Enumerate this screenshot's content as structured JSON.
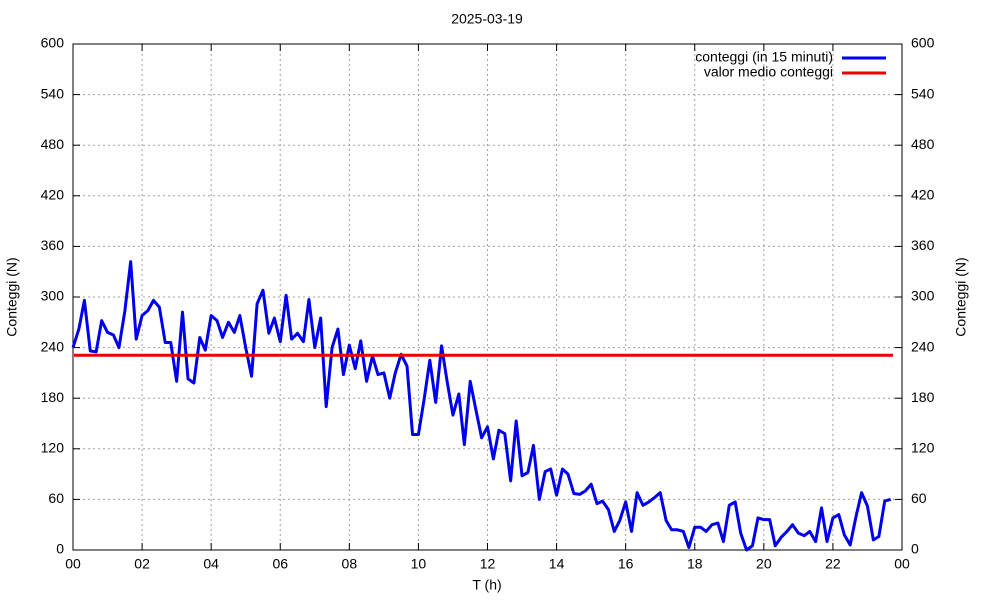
{
  "chart_data": {
    "type": "line",
    "title": "2025-03-19",
    "xlabel": "T (h)",
    "ylabel": "Conteggi (N)",
    "y2label": "Conteggi (N)",
    "xlim": [
      0,
      24
    ],
    "xticks": [
      {
        "value": 0,
        "label": "00"
      },
      {
        "value": 2,
        "label": "02"
      },
      {
        "value": 4,
        "label": "04"
      },
      {
        "value": 6,
        "label": "06"
      },
      {
        "value": 8,
        "label": "08"
      },
      10,
      12,
      14,
      16,
      18,
      20,
      22,
      {
        "value": 24,
        "label": "00"
      }
    ],
    "ylim": [
      0,
      600
    ],
    "yticks": [
      0,
      60,
      120,
      180,
      240,
      300,
      360,
      420,
      480,
      540,
      600
    ],
    "y2lim": [
      0,
      600
    ],
    "y2ticks": [
      0,
      60,
      120,
      180,
      240,
      300,
      360,
      420,
      480,
      540,
      600
    ],
    "grid": true,
    "legend": "top-right",
    "x": [
      0,
      0.17,
      0.33,
      0.5,
      0.67,
      0.83,
      1,
      1.17,
      1.33,
      1.5,
      1.67,
      1.83,
      2,
      2.17,
      2.33,
      2.5,
      2.67,
      2.83,
      3,
      3.17,
      3.33,
      3.5,
      3.67,
      3.83,
      4,
      4.17,
      4.33,
      4.5,
      4.67,
      4.83,
      5,
      5.17,
      5.33,
      5.5,
      5.67,
      5.83,
      6,
      6.17,
      6.33,
      6.5,
      6.67,
      6.83,
      7,
      7.17,
      7.33,
      7.5,
      7.67,
      7.83,
      8,
      8.17,
      8.33,
      8.5,
      8.67,
      8.83,
      9,
      9.17,
      9.33,
      9.5,
      9.67,
      9.83,
      10,
      10.17,
      10.33,
      10.5,
      10.67,
      10.83,
      11,
      11.17,
      11.33,
      11.5,
      11.67,
      11.83,
      12,
      12.17,
      12.33,
      12.5,
      12.67,
      12.83,
      13,
      13.17,
      13.33,
      13.5,
      13.67,
      13.83,
      14,
      14.17,
      14.33,
      14.5,
      14.67,
      14.83,
      15,
      15.17,
      15.33,
      15.5,
      15.67,
      15.83,
      16,
      16.17,
      16.33,
      16.5,
      16.67,
      16.83,
      17,
      17.17,
      17.33,
      17.5,
      17.67,
      17.83,
      18,
      18.17,
      18.33,
      18.5,
      18.67,
      18.83,
      19,
      19.17,
      19.33,
      19.5,
      19.67,
      19.83,
      20,
      20.17,
      20.33,
      20.5,
      20.67,
      20.83,
      21,
      21.17,
      21.33,
      21.5,
      21.67,
      21.83,
      22,
      22.17,
      22.33,
      22.5,
      22.67,
      22.83,
      23,
      23.17,
      23.33,
      23.5,
      23.67
    ],
    "series": [
      {
        "name": "conteggi (in 15 minuti)",
        "color": "#0000ee",
        "values": [
          240,
          262,
          296,
          236,
          235,
          272,
          258,
          255,
          240,
          283,
          342,
          250,
          278,
          284,
          296,
          288,
          246,
          246,
          200,
          282,
          203,
          198,
          252,
          237,
          278,
          272,
          252,
          270,
          258,
          278,
          240,
          206,
          292,
          308,
          257,
          275,
          247,
          302,
          250,
          257,
          247,
          297,
          240,
          275,
          170,
          240,
          262,
          208,
          243,
          215,
          248,
          200,
          230,
          208,
          210,
          180,
          210,
          232,
          218,
          137,
          137,
          180,
          225,
          175,
          242,
          200,
          160,
          185,
          125,
          200,
          165,
          133,
          146,
          108,
          142,
          138,
          82,
          153,
          88,
          92,
          124,
          60,
          93,
          96,
          65,
          96,
          90,
          67,
          66,
          70,
          78,
          55,
          58,
          48,
          22,
          35,
          57,
          22,
          68,
          53,
          57,
          62,
          68,
          35,
          24,
          24,
          22,
          3,
          27,
          27,
          22,
          30,
          32,
          10,
          53,
          57,
          20,
          0,
          5,
          38,
          36,
          36,
          5,
          15,
          22,
          30,
          20,
          17,
          22,
          10,
          50,
          10,
          38,
          42,
          18,
          6,
          40,
          68,
          52,
          12,
          16,
          58,
          60
        ]
      },
      {
        "name": "valor medio conteggi",
        "color": "#ee0000",
        "value": 231
      }
    ]
  }
}
